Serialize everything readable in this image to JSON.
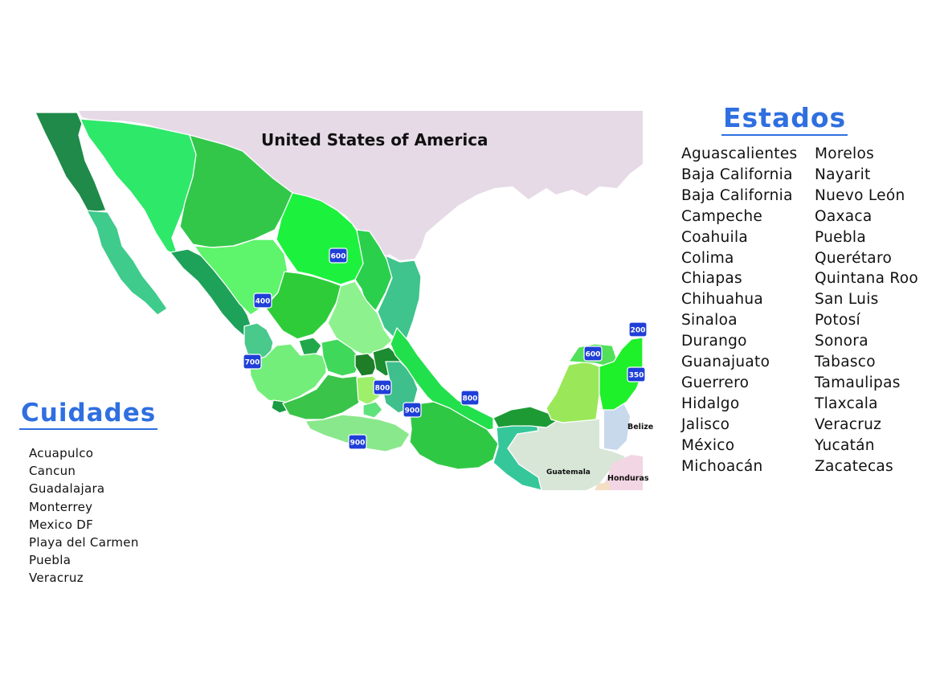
{
  "map": {
    "labels": {
      "usa": "United States of America",
      "belize": "Belize",
      "guatemala": "Guatemala",
      "honduras": "Honduras"
    },
    "shields": [
      "600",
      "400",
      "700",
      "800",
      "900",
      "800",
      "900",
      "600",
      "200",
      "350"
    ],
    "colors": {
      "usa": "#e6dae6",
      "belize": "#c9d9ec",
      "guatemala": "#d8e6d8",
      "honduras": "#f2d6e3",
      "sea": "#ffffff",
      "highway_shield": "#1f3fd8"
    }
  },
  "estados": {
    "title": "Estados",
    "col1": [
      "Aguascalientes",
      "Baja California",
      "Baja California",
      "Campeche",
      "Coahuila",
      "Colima",
      "Chiapas",
      "Chihuahua",
      "Sinaloa",
      "Durango",
      "Guanajuato",
      "Guerrero",
      "Hidalgo",
      "Jalisco",
      "México",
      "Michoacán"
    ],
    "col2": [
      "Morelos",
      "Nayarit",
      "Nuevo León",
      "Oaxaca",
      "Puebla",
      "Querétaro",
      "Quintana Roo",
      "San Luis",
      "Potosí",
      "Sonora",
      "Tabasco",
      "Tamaulipas",
      "Tlaxcala",
      "Veracruz",
      "Yucatán",
      "Zacatecas"
    ]
  },
  "cuidades": {
    "title": "Cuidades",
    "items": [
      "Acuapulco",
      "Cancun",
      "Guadalajara",
      "Monterrey",
      "Mexico DF",
      "Playa del Carmen",
      "Puebla",
      "Veracruz"
    ]
  }
}
